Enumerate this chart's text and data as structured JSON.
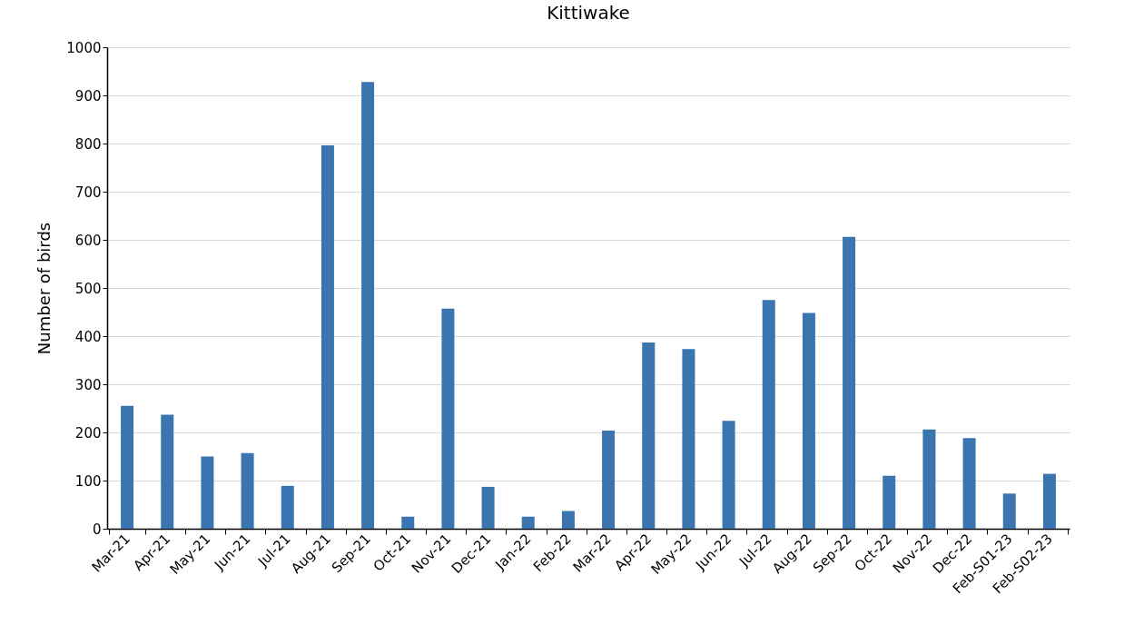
{
  "chart_data": {
    "type": "bar",
    "title": "Kittiwake",
    "ylabel": "Number of birds",
    "categories": [
      "Mar-21",
      "Apr-21",
      "May-21",
      "Jun-21",
      "Jul-21",
      "Aug-21",
      "Sep-21",
      "Oct-21",
      "Nov-21",
      "Dec-21",
      "Jan-22",
      "Feb-22",
      "Mar-22",
      "Apr-22",
      "May-22",
      "Jun-22",
      "Jul-22",
      "Aug-22",
      "Sep-22",
      "Oct-22",
      "Nov-22",
      "Dec-22",
      "Feb-S01-23",
      "Feb-S02-23"
    ],
    "values": [
      255,
      237,
      150,
      157,
      89,
      796,
      928,
      25,
      457,
      87,
      25,
      37,
      204,
      387,
      373,
      224,
      475,
      448,
      606,
      110,
      206,
      188,
      73,
      114
    ],
    "color": "#3a75b0",
    "ylim": [
      0,
      1000
    ],
    "yticks": [
      0,
      100,
      200,
      300,
      400,
      500,
      600,
      700,
      800,
      900,
      1000
    ],
    "grid": "y"
  }
}
